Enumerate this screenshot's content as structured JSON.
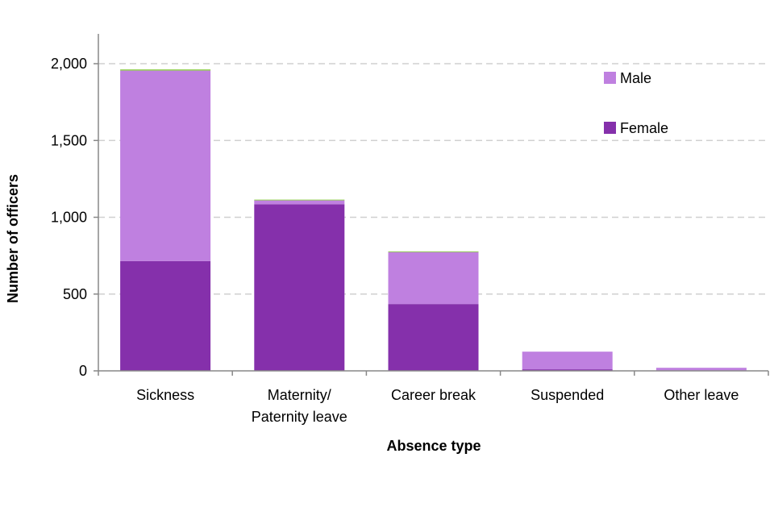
{
  "chart_data": {
    "type": "bar",
    "stacked": true,
    "title": "",
    "xlabel": "Absence type",
    "ylabel": "Number of officers",
    "ylim": [
      0,
      2200
    ],
    "yticks": [
      0,
      500,
      1000,
      1500,
      2000
    ],
    "ytick_labels": [
      "0",
      "500",
      "1,000",
      "1,500",
      "2,000"
    ],
    "grid": "horizontal dashed",
    "legend_position": "top-right",
    "categories": [
      [
        "Sickness"
      ],
      [
        "Maternity/",
        "Paternity leave"
      ],
      [
        "Career break"
      ],
      [
        "Suspended"
      ],
      [
        "Other leave"
      ]
    ],
    "series": [
      {
        "name": "Female",
        "color": "#8530ab",
        "values": [
          715,
          1085,
          435,
          10,
          3
        ]
      },
      {
        "name": "Male",
        "color": "#bf80e0",
        "values": [
          1240,
          25,
          340,
          115,
          17
        ]
      },
      {
        "name": "",
        "color": "#92d050",
        "values": [
          8,
          5,
          3,
          0,
          0
        ]
      }
    ],
    "legend": [
      {
        "label": "Male",
        "color": "#bf80e0"
      },
      {
        "label": "Female",
        "color": "#8530ab"
      }
    ]
  }
}
